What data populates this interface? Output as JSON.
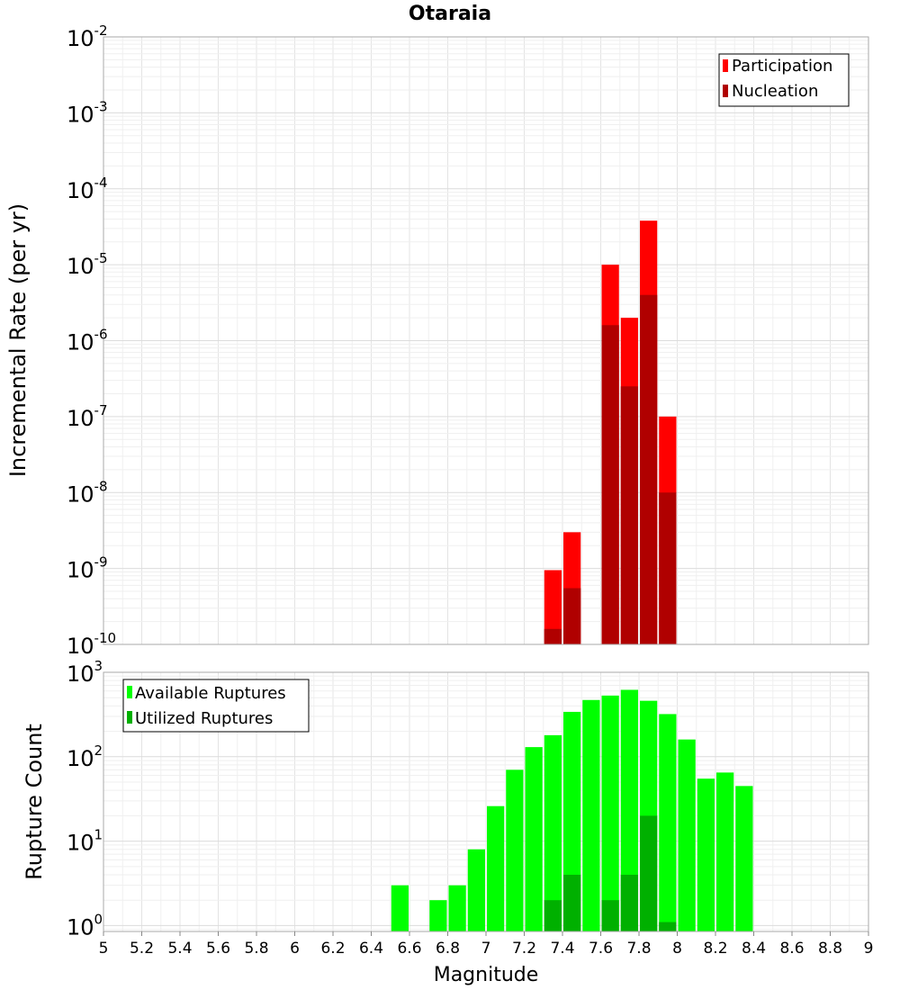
{
  "chart_data": [
    {
      "type": "bar",
      "title": "Otaraia",
      "ylabel": "Incremental Rate (per yr)",
      "yscale": "log",
      "ylim_exp": [
        -10,
        -2
      ],
      "xlim": [
        5,
        9
      ],
      "y_ticks": [
        {
          "base": "10",
          "exp": "-10"
        },
        {
          "base": "10",
          "exp": "-9"
        },
        {
          "base": "10",
          "exp": "-8"
        },
        {
          "base": "10",
          "exp": "-7"
        },
        {
          "base": "10",
          "exp": "-6"
        },
        {
          "base": "10",
          "exp": "-5"
        },
        {
          "base": "10",
          "exp": "-4"
        },
        {
          "base": "10",
          "exp": "-3"
        },
        {
          "base": "10",
          "exp": "-2"
        }
      ],
      "legend": {
        "position": "top-right",
        "entries": [
          "Participation",
          "Nucleation"
        ]
      },
      "series": [
        {
          "name": "Participation",
          "color": "#ff0000",
          "x": [
            7.35,
            7.45,
            7.65,
            7.75,
            7.85,
            7.95
          ],
          "values": [
            9.5e-10,
            3e-09,
            1e-05,
            2e-06,
            3.8e-05,
            1e-07
          ]
        },
        {
          "name": "Nucleation",
          "color": "#b00000",
          "x": [
            7.35,
            7.45,
            7.65,
            7.75,
            7.85,
            7.95
          ],
          "values": [
            1.6e-10,
            5.5e-10,
            1.6e-06,
            2.5e-07,
            4e-06,
            1e-08
          ]
        }
      ]
    },
    {
      "type": "bar",
      "ylabel": "Rupture Count",
      "xlabel": "Magnitude",
      "yscale": "log",
      "ylim_exp": [
        -0.07,
        3
      ],
      "xlim": [
        5,
        9
      ],
      "x_ticks": [
        "5",
        "5.2",
        "5.4",
        "5.6",
        "5.8",
        "6",
        "6.2",
        "6.4",
        "6.6",
        "6.8",
        "7",
        "7.2",
        "7.4",
        "7.6",
        "7.8",
        "8",
        "8.2",
        "8.4",
        "8.6",
        "8.8",
        "9"
      ],
      "y_ticks": [
        {
          "base": "10",
          "exp": "0"
        },
        {
          "base": "10",
          "exp": "1"
        },
        {
          "base": "10",
          "exp": "2"
        },
        {
          "base": "10",
          "exp": "3"
        }
      ],
      "legend": {
        "position": "top-left",
        "entries": [
          "Available Ruptures",
          "Utilized Ruptures"
        ]
      },
      "series": [
        {
          "name": "Available Ruptures",
          "color": "#00ff00",
          "x": [
            6.55,
            6.75,
            6.85,
            6.95,
            7.05,
            7.15,
            7.25,
            7.35,
            7.45,
            7.55,
            7.65,
            7.75,
            7.85,
            7.95,
            8.05,
            8.15,
            8.25,
            8.35
          ],
          "values": [
            3,
            2,
            3,
            8,
            26,
            70,
            130,
            180,
            340,
            470,
            530,
            620,
            460,
            320,
            160,
            55,
            65,
            45
          ]
        },
        {
          "name": "Utilized Ruptures",
          "color": "#00b000",
          "x": [
            7.35,
            7.45,
            7.65,
            7.75,
            7.85,
            7.95
          ],
          "values": [
            2,
            4,
            2,
            4,
            20,
            1.1
          ]
        }
      ]
    }
  ]
}
